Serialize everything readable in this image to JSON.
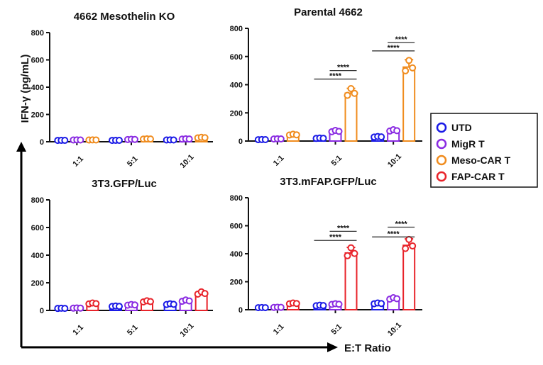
{
  "chart_data": {
    "type": "bar",
    "ylabel": "IFN-γ (pg/mL)",
    "xlabel": "E:T Ratio",
    "categories": [
      "1:1",
      "5:1",
      "10:1"
    ],
    "ylim": [
      0,
      800
    ],
    "yticks": [
      0,
      200,
      400,
      600,
      800
    ],
    "legend": {
      "placement": "right",
      "entries": [
        {
          "name": "UTD",
          "color": "#1a1ae6"
        },
        {
          "name": "MigR T",
          "color": "#8a2be2"
        },
        {
          "name": "Meso-CAR T",
          "color": "#f08c1e"
        },
        {
          "name": "FAP-CAR T",
          "color": "#e8232a"
        }
      ]
    },
    "panels": [
      {
        "title": "4662 Mesothelin KO",
        "car": "Meso-CAR T",
        "series": [
          {
            "name": "UTD",
            "values": [
              5,
              5,
              8
            ]
          },
          {
            "name": "MigR T",
            "values": [
              8,
              12,
              15
            ]
          },
          {
            "name": "Meso-CAR T",
            "values": [
              8,
              15,
              25
            ]
          }
        ],
        "significance": []
      },
      {
        "title": "Parental 4662",
        "car": "Meso-CAR T",
        "series": [
          {
            "name": "UTD",
            "values": [
              5,
              15,
              25
            ]
          },
          {
            "name": "MigR T",
            "values": [
              10,
              65,
              70
            ]
          },
          {
            "name": "Meso-CAR T",
            "values": [
              40,
              340,
              525
            ]
          }
        ],
        "significance": [
          {
            "category": "5:1",
            "from": "UTD",
            "to": "Meso-CAR T",
            "y": 440,
            "label": "****"
          },
          {
            "category": "5:1",
            "from": "MigR T",
            "to": "Meso-CAR T",
            "y": 500,
            "label": "****"
          },
          {
            "category": "10:1",
            "from": "UTD",
            "to": "Meso-CAR T",
            "y": 640,
            "label": "****"
          },
          {
            "category": "10:1",
            "from": "MigR T",
            "to": "Meso-CAR T",
            "y": 700,
            "label": "****"
          }
        ]
      },
      {
        "title": "3T3.GFP/Luc",
        "car": "FAP-CAR T",
        "series": [
          {
            "name": "UTD",
            "values": [
              10,
              25,
              40
            ]
          },
          {
            "name": "MigR T",
            "values": [
              12,
              35,
              65
            ]
          },
          {
            "name": "FAP-CAR T",
            "values": [
              45,
              60,
              120
            ]
          }
        ],
        "significance": []
      },
      {
        "title": "3T3.mFAP.GFP/Luc",
        "car": "FAP-CAR T",
        "series": [
          {
            "name": "UTD",
            "values": [
              10,
              25,
              40
            ]
          },
          {
            "name": "MigR T",
            "values": [
              12,
              35,
              75
            ]
          },
          {
            "name": "FAP-CAR T",
            "values": [
              40,
              405,
              460
            ]
          }
        ],
        "significance": [
          {
            "category": "5:1",
            "from": "UTD",
            "to": "FAP-CAR T",
            "y": 495,
            "label": "****"
          },
          {
            "category": "5:1",
            "from": "MigR T",
            "to": "FAP-CAR T",
            "y": 560,
            "label": "****"
          },
          {
            "category": "10:1",
            "from": "UTD",
            "to": "FAP-CAR T",
            "y": 520,
            "label": "****"
          },
          {
            "category": "10:1",
            "from": "MigR T",
            "to": "FAP-CAR T",
            "y": 590,
            "label": "****"
          }
        ]
      }
    ]
  }
}
